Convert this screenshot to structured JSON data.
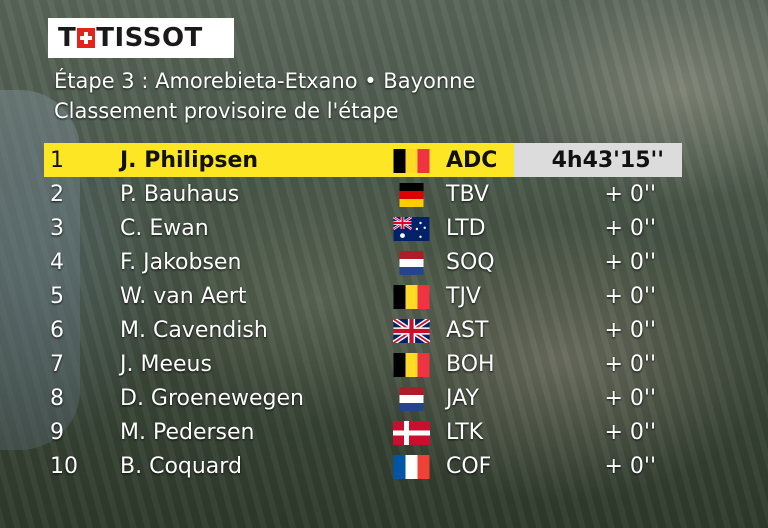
{
  "brand": {
    "logo_text_left": "T",
    "logo_text_right": "TISSOT"
  },
  "stage": {
    "title": "Étape 3 : Amorebieta-Etxano • Bayonne",
    "subtitle": "Classement provisoire de l'étape"
  },
  "colors": {
    "leader_band": "#fde725",
    "time_box": "#dcdcdc",
    "tissot_red": "#e1251b"
  },
  "results": [
    {
      "pos": "1",
      "name": "J. Philipsen",
      "flag": "belgium",
      "team": "ADC",
      "gap": "4h43'15''"
    },
    {
      "pos": "2",
      "name": "P. Bauhaus",
      "flag": "germany",
      "team": "TBV",
      "gap": "+ 0''"
    },
    {
      "pos": "3",
      "name": "C. Ewan",
      "flag": "australia",
      "team": "LTD",
      "gap": "+ 0''"
    },
    {
      "pos": "4",
      "name": "F. Jakobsen",
      "flag": "netherlands",
      "team": "SOQ",
      "gap": "+ 0''"
    },
    {
      "pos": "5",
      "name": "W. van Aert",
      "flag": "belgium",
      "team": "TJV",
      "gap": "+ 0''"
    },
    {
      "pos": "6",
      "name": "M. Cavendish",
      "flag": "united-kingdom",
      "team": "AST",
      "gap": "+ 0''"
    },
    {
      "pos": "7",
      "name": "J. Meeus",
      "flag": "belgium",
      "team": "BOH",
      "gap": "+ 0''"
    },
    {
      "pos": "8",
      "name": "D. Groenewegen",
      "flag": "netherlands",
      "team": "JAY",
      "gap": "+ 0''"
    },
    {
      "pos": "9",
      "name": "M. Pedersen",
      "flag": "denmark",
      "team": "LTK",
      "gap": "+ 0''"
    },
    {
      "pos": "10",
      "name": "B. Coquard",
      "flag": "france",
      "team": "COF",
      "gap": "+ 0''"
    }
  ]
}
